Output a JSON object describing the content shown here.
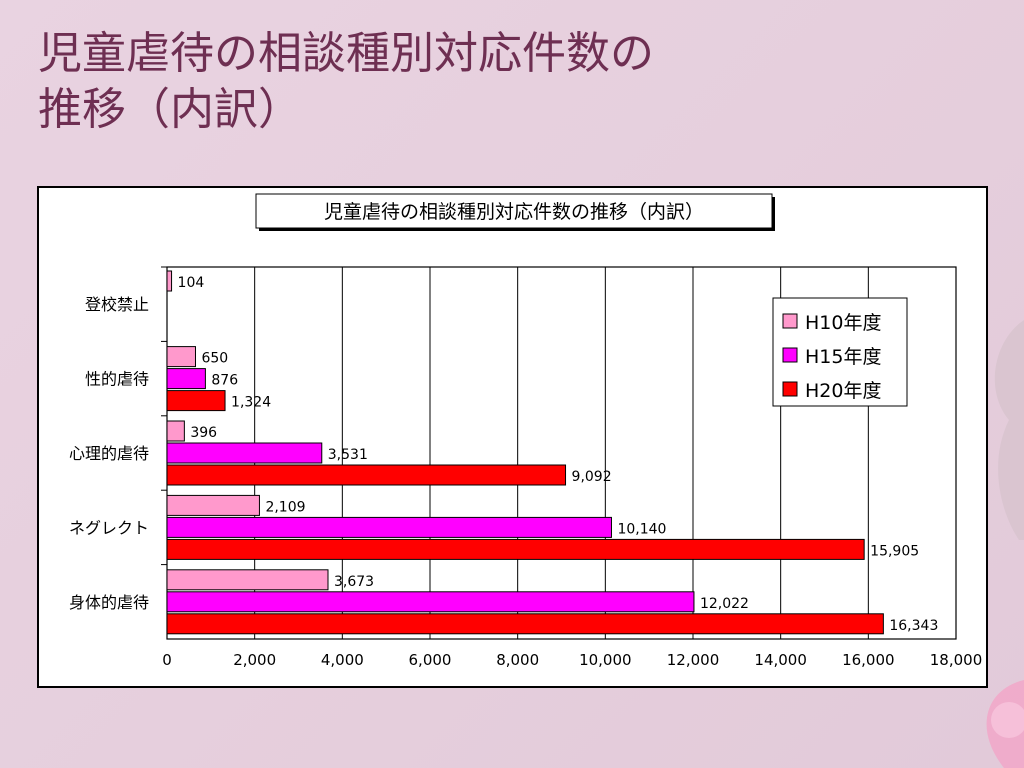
{
  "slide": {
    "title_line1": "児童虐待の相談種別対応件数の",
    "title_line2": "推移（内訳）"
  },
  "chart_data": {
    "type": "bar",
    "orientation": "horizontal",
    "title": "児童虐待の相談種別対応件数の推移（内訳）",
    "categories": [
      "登校禁止",
      "性的虐待",
      "心理的虐待",
      "ネグレクト",
      "身体的虐待"
    ],
    "series": [
      {
        "name": "H10年度",
        "color": "#ff99cc",
        "values": [
          104,
          650,
          396,
          2109,
          3673
        ]
      },
      {
        "name": "H15年度",
        "color": "#ff00ff",
        "values": [
          null,
          876,
          3531,
          10140,
          12022
        ]
      },
      {
        "name": "H20年度",
        "color": "#ff0000",
        "values": [
          null,
          1324,
          9092,
          15905,
          16343
        ]
      }
    ],
    "value_labels": [
      [
        "104",
        "650",
        "396",
        "2,109",
        "3,673"
      ],
      [
        null,
        "876",
        "3,531",
        "10,140",
        "12,022"
      ],
      [
        null,
        "1,324",
        "9,092",
        "15,905",
        "16,343"
      ]
    ],
    "xlim": [
      0,
      18000
    ],
    "x_ticks": [
      0,
      2000,
      4000,
      6000,
      8000,
      10000,
      12000,
      14000,
      16000,
      18000
    ],
    "x_tick_labels": [
      "0",
      "2,000",
      "4,000",
      "6,000",
      "8,000",
      "10,000",
      "12,000",
      "14,000",
      "16,000",
      "18,000"
    ],
    "grid": true,
    "legend_position": "top-right"
  }
}
